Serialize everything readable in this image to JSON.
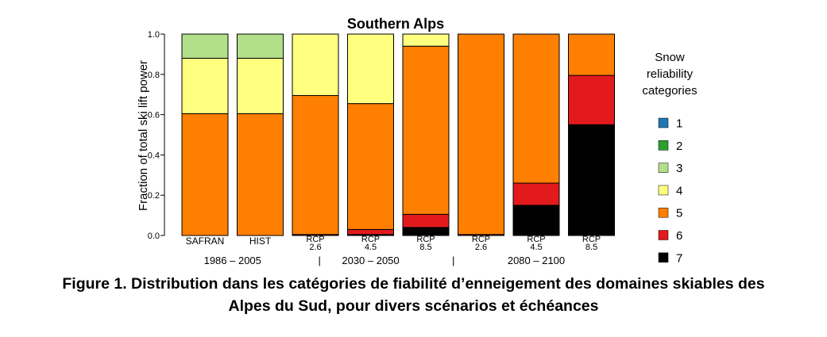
{
  "chart_data": {
    "type": "bar",
    "stacked": true,
    "title": "Southern Alps",
    "ylabel": "Fraction of total ski lift power",
    "xlabel": "",
    "ylim": [
      0,
      1
    ],
    "yticks": [
      "0.0",
      "0.2",
      "0.4",
      "0.6",
      "0.8",
      "1.0"
    ],
    "categories": [
      [
        "SAFRAN"
      ],
      [
        "HIST"
      ],
      [
        "RCP",
        "2.6"
      ],
      [
        "RCP",
        "4.5"
      ],
      [
        "RCP",
        "8.5"
      ],
      [
        "RCP",
        "2.6"
      ],
      [
        "RCP",
        "4.5"
      ],
      [
        "RCP",
        "8.5"
      ]
    ],
    "periods": [
      {
        "label": "1986 – 2005",
        "from": 0,
        "to": 1
      },
      {
        "label": "2030 – 2050",
        "from": 2,
        "to": 4
      },
      {
        "label": "2080 – 2100",
        "from": 5,
        "to": 7
      }
    ],
    "period_separator": "|",
    "legend_title": [
      "Snow",
      "reliability",
      "categories"
    ],
    "legend_position": "right",
    "series": [
      {
        "name": "1",
        "color": "#1f77b4",
        "values": [
          0,
          0,
          0,
          0,
          0,
          0,
          0,
          0
        ]
      },
      {
        "name": "2",
        "color": "#2ca02c",
        "values": [
          0,
          0,
          0,
          0,
          0,
          0,
          0,
          0
        ]
      },
      {
        "name": "3",
        "color": "#b2df8a",
        "values": [
          0.12,
          0.12,
          0,
          0,
          0,
          0,
          0,
          0
        ]
      },
      {
        "name": "4",
        "color": "#ffff80",
        "values": [
          0.275,
          0.275,
          0.305,
          0.345,
          0.06,
          0,
          0,
          0
        ]
      },
      {
        "name": "5",
        "color": "#ff7f00",
        "values": [
          0.605,
          0.605,
          0.69,
          0.625,
          0.835,
          0.995,
          0.74,
          0.205
        ]
      },
      {
        "name": "6",
        "color": "#e31a1c",
        "values": [
          0,
          0,
          0.005,
          0.025,
          0.065,
          0.005,
          0.11,
          0.245
        ]
      },
      {
        "name": "7",
        "color": "#000000",
        "values": [
          0,
          0,
          0,
          0.005,
          0.04,
          0,
          0.15,
          0.55
        ]
      }
    ]
  },
  "caption": {
    "line1": "Figure 1. Distribution dans les catégories de fiabilité d’enneigement des domaines skiables des",
    "line2": "Alpes du Sud, pour divers scénarios et échéances"
  }
}
